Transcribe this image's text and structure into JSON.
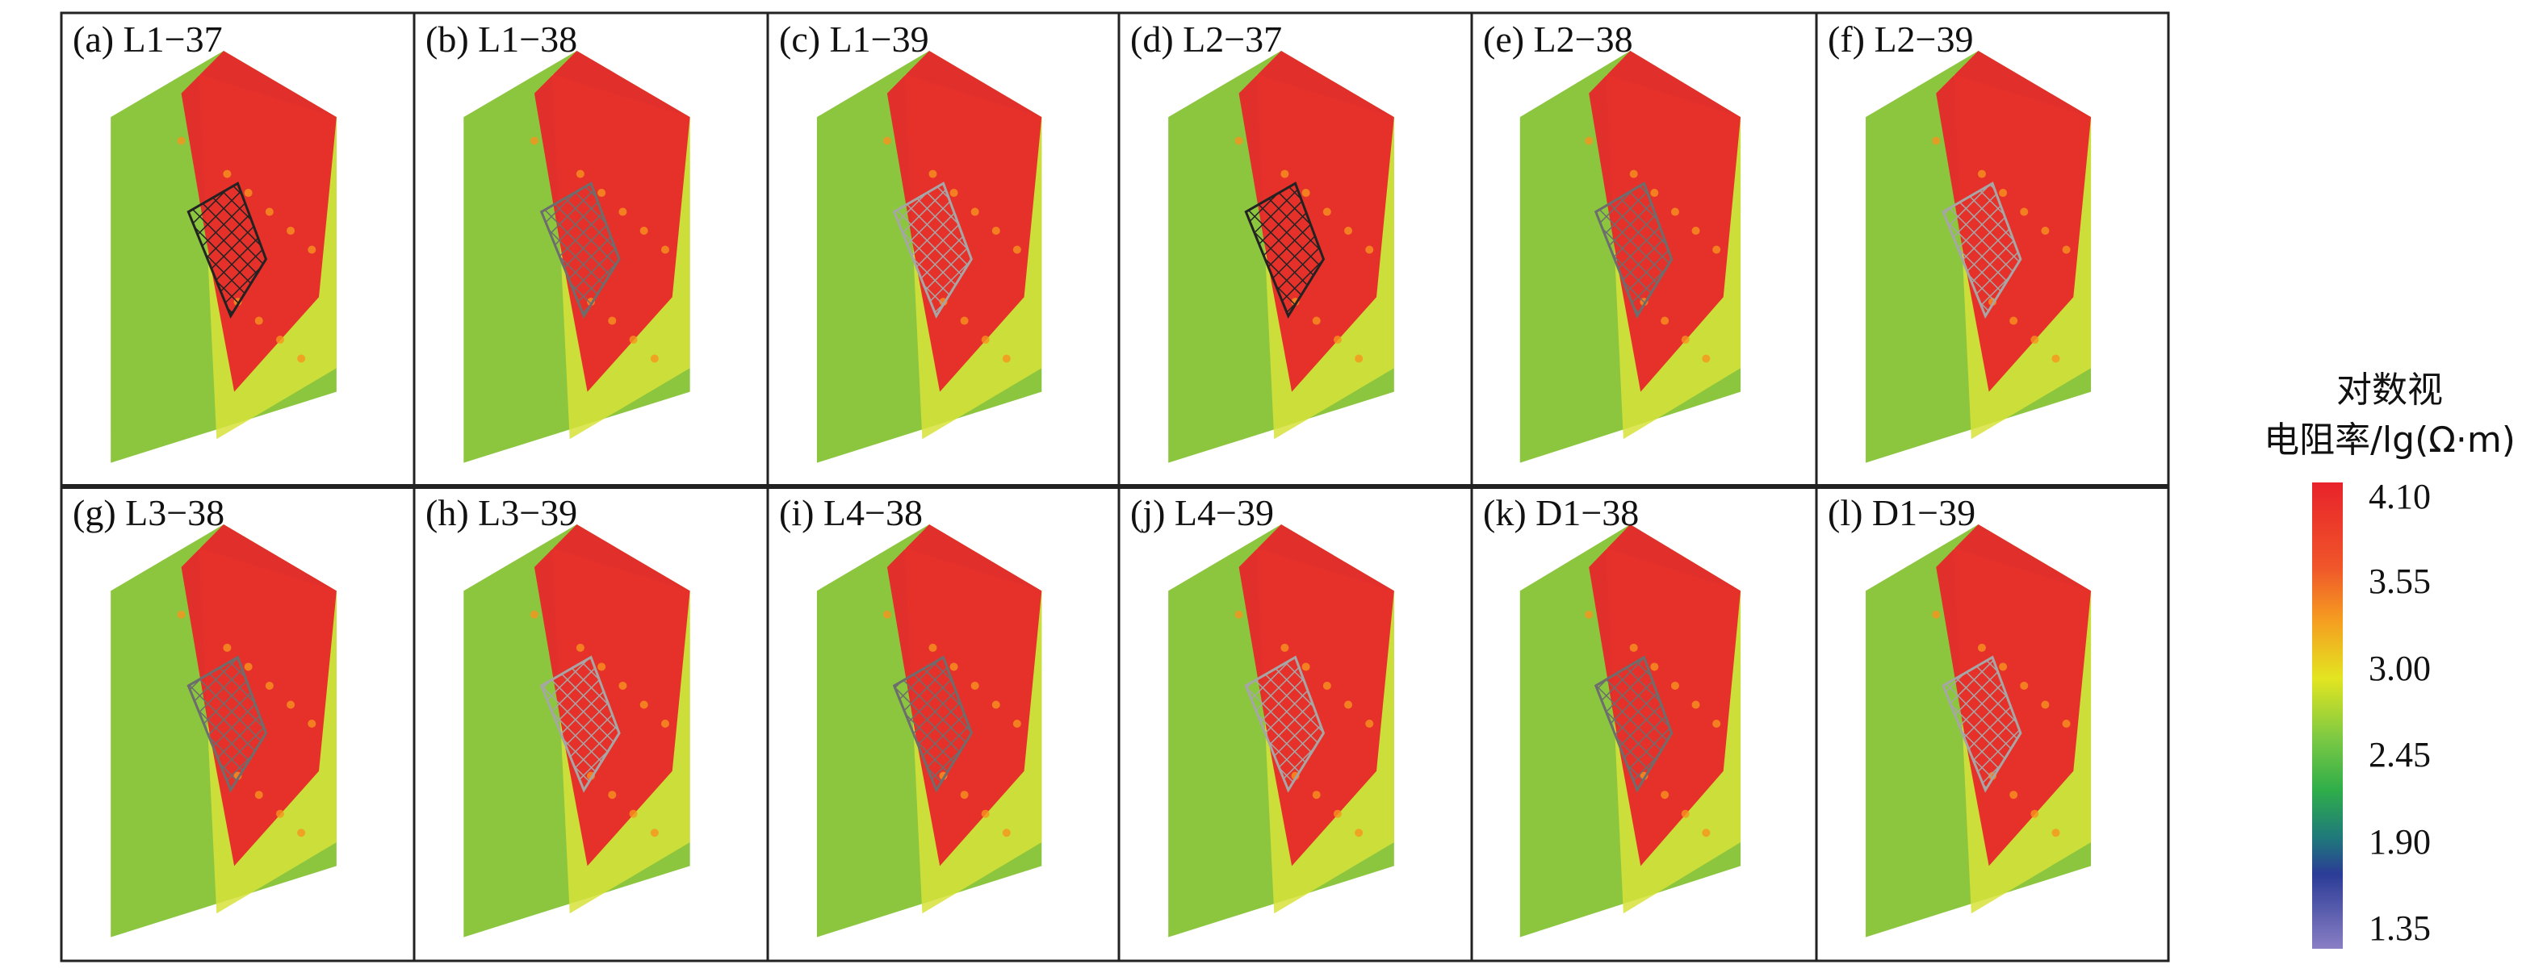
{
  "panels": [
    {
      "label": "(a) L1−37"
    },
    {
      "label": "(b) L1−38"
    },
    {
      "label": "(c) L1−39"
    },
    {
      "label": "(d) L2−37"
    },
    {
      "label": "(e) L2−38"
    },
    {
      "label": "(f) L2−39"
    },
    {
      "label": "(g) L3−38"
    },
    {
      "label": "(h) L3−39"
    },
    {
      "label": "(i) L4−38"
    },
    {
      "label": "(j) L4−39"
    },
    {
      "label": "(k) D1−38"
    },
    {
      "label": "(l) D1−39"
    }
  ],
  "legend": {
    "title_line1": "对数视",
    "title_line2": "电阻率/lg(Ω·m)",
    "ticks": [
      "4.10",
      "3.55",
      "3.00",
      "2.45",
      "1.90",
      "1.35"
    ],
    "colors": [
      "#e8222a",
      "#f57b25",
      "#e2e521",
      "#3fb54a",
      "#2b3c96",
      "#8a7fc5"
    ]
  }
}
